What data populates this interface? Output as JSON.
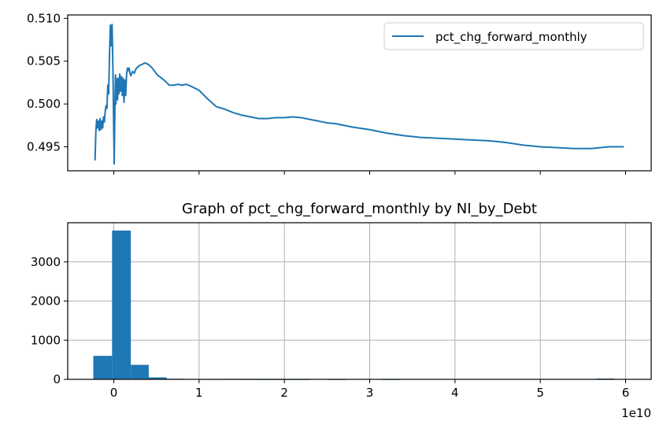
{
  "chart_data": [
    {
      "type": "line",
      "title": "",
      "xlabel": "",
      "ylabel": "",
      "ylim": [
        0.4922,
        0.5104
      ],
      "xlim": [
        -0.54,
        6.3
      ],
      "x_scale_label": "",
      "sharex": true,
      "yticks": [
        0.495,
        0.5,
        0.505,
        0.51
      ],
      "ytick_labels": [
        "0.495",
        "0.500",
        "0.505",
        "0.510"
      ],
      "grid": false,
      "legend": "top-right",
      "color": "#1f77b4",
      "series": [
        {
          "name": "pct_chg_forward_monthly",
          "x": [
            -0.22,
            -0.21,
            -0.2,
            -0.19,
            -0.18,
            -0.17,
            -0.16,
            -0.15,
            -0.14,
            -0.13,
            -0.12,
            -0.11,
            -0.1,
            -0.09,
            -0.08,
            -0.07,
            -0.06,
            -0.05,
            -0.04,
            -0.03,
            -0.02,
            -0.01,
            0.0,
            0.005,
            0.01,
            0.015,
            0.02,
            0.025,
            0.03,
            0.035,
            0.04,
            0.045,
            0.05,
            0.06,
            0.07,
            0.08,
            0.09,
            0.1,
            0.11,
            0.12,
            0.13,
            0.14,
            0.15,
            0.16,
            0.17,
            0.18,
            0.19,
            0.2,
            0.22,
            0.24,
            0.26,
            0.28,
            0.3,
            0.33,
            0.36,
            0.39,
            0.42,
            0.45,
            0.48,
            0.51,
            0.55,
            0.6,
            0.65,
            0.7,
            0.75,
            0.8,
            0.85,
            0.9,
            1.0,
            1.1,
            1.2,
            1.3,
            1.4,
            1.5,
            1.6,
            1.7,
            1.8,
            1.9,
            2.0,
            2.1,
            2.2,
            2.3,
            2.4,
            2.5,
            2.6,
            2.8,
            3.0,
            3.2,
            3.4,
            3.6,
            3.8,
            4.0,
            4.2,
            4.4,
            4.6,
            4.8,
            5.0,
            5.2,
            5.4,
            5.6,
            5.8,
            5.98
          ],
          "y": [
            0.4934,
            0.4968,
            0.4982,
            0.4972,
            0.498,
            0.4969,
            0.4983,
            0.497,
            0.498,
            0.4972,
            0.4985,
            0.4979,
            0.4992,
            0.4998,
            0.4995,
            0.5022,
            0.5012,
            0.5058,
            0.5092,
            0.5068,
            0.5093,
            0.504,
            0.4965,
            0.493,
            0.497,
            0.501,
            0.5034,
            0.5,
            0.503,
            0.501,
            0.5025,
            0.5005,
            0.503,
            0.5012,
            0.5035,
            0.5015,
            0.5032,
            0.501,
            0.503,
            0.5002,
            0.5028,
            0.501,
            0.5035,
            0.5042,
            0.5039,
            0.5042,
            0.5036,
            0.5033,
            0.5038,
            0.5036,
            0.5041,
            0.5043,
            0.5045,
            0.5046,
            0.5048,
            0.5047,
            0.5045,
            0.5042,
            0.5038,
            0.5034,
            0.5031,
            0.5027,
            0.5022,
            0.5022,
            0.5023,
            0.5022,
            0.5023,
            0.5021,
            0.5016,
            0.5006,
            0.4997,
            0.4994,
            0.499,
            0.4987,
            0.4985,
            0.4983,
            0.4983,
            0.4984,
            0.4984,
            0.4985,
            0.4984,
            0.4982,
            0.498,
            0.4978,
            0.4977,
            0.4973,
            0.497,
            0.4966,
            0.4963,
            0.4961,
            0.496,
            0.4959,
            0.4958,
            0.4957,
            0.4955,
            0.4952,
            0.495,
            0.4949,
            0.4948,
            0.4948,
            0.495,
            0.495
          ]
        }
      ]
    },
    {
      "type": "bar",
      "subtype": "histogram",
      "title": "Graph of pct_chg_forward_monthly by NI_by_Debt",
      "xlabel": "",
      "ylabel": "",
      "xlim": [
        -0.54,
        6.3
      ],
      "ylim": [
        0,
        4000
      ],
      "x_scale_label": "1e10",
      "xticks": [
        0,
        1,
        2,
        3,
        4,
        5,
        6
      ],
      "xtick_labels": [
        "0",
        "1",
        "2",
        "3",
        "4",
        "5",
        "6"
      ],
      "yticks": [
        0,
        1000,
        2000,
        3000
      ],
      "ytick_labels": [
        "0",
        "1000",
        "2000",
        "3000"
      ],
      "grid": true,
      "color": "#1f77b4",
      "bin_edges": [
        -0.24,
        -0.02,
        0.2,
        0.41,
        0.62,
        0.83,
        1.04,
        1.25,
        1.46,
        1.67,
        1.88,
        2.09,
        2.3,
        2.51,
        2.72,
        2.93,
        3.14,
        3.35,
        3.56,
        3.77,
        3.98,
        4.19,
        4.4,
        4.61,
        4.82,
        5.03,
        5.24,
        5.45,
        5.66,
        5.87,
        6.08
      ],
      "counts": [
        600,
        3800,
        370,
        50,
        15,
        8,
        4,
        3,
        2,
        1,
        1,
        1,
        0,
        1,
        0,
        0,
        1,
        0,
        0,
        0,
        0,
        0,
        0,
        0,
        0,
        0,
        0,
        0,
        20,
        0
      ]
    }
  ]
}
